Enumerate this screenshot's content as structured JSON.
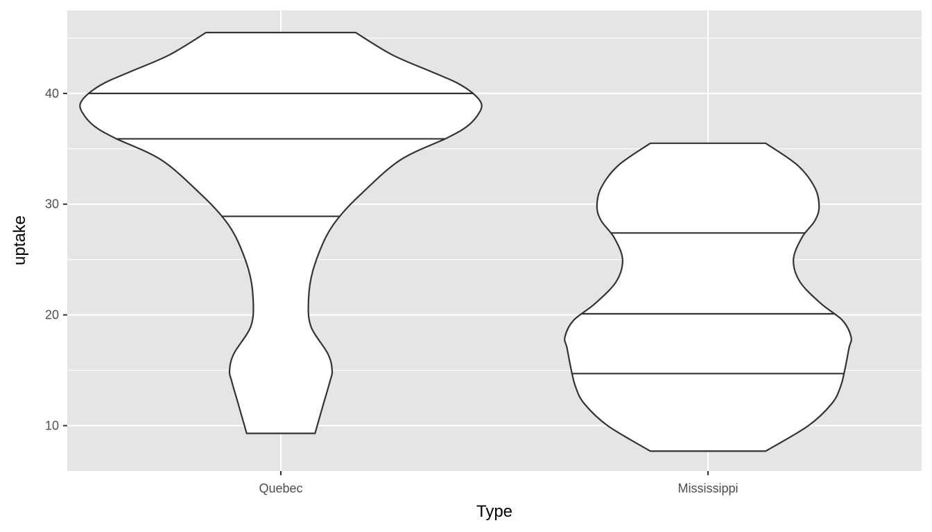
{
  "chart_data": {
    "type": "violin",
    "title": "",
    "xlabel": "Type",
    "ylabel": "uptake",
    "categories": [
      "Quebec",
      "Mississippi"
    ],
    "ylim": [
      5.9,
      47.5
    ],
    "yticks": [
      10,
      20,
      30,
      40
    ],
    "ytick_labels": [
      "10",
      "20",
      "30",
      "40"
    ],
    "grid": true,
    "legend": "none",
    "colors": {
      "panel": "#E5E5E5",
      "grid": "#FFFFFF",
      "fill": "#FFFFFF",
      "outline": "#333333",
      "text": "#4D4D4D"
    },
    "violins": [
      {
        "category": "Quebec",
        "min": 9.3,
        "max": 45.5,
        "quantiles": [
          28.9,
          35.9,
          40.0
        ],
        "profile": [
          [
            9.3,
            0.08
          ],
          [
            12,
            0.1
          ],
          [
            14,
            0.115
          ],
          [
            15,
            0.12
          ],
          [
            16.5,
            0.11
          ],
          [
            19,
            0.07
          ],
          [
            21.5,
            0.065
          ],
          [
            24,
            0.075
          ],
          [
            27,
            0.105
          ],
          [
            29,
            0.14
          ],
          [
            31,
            0.19
          ],
          [
            34,
            0.28
          ],
          [
            36,
            0.39
          ],
          [
            37,
            0.435
          ],
          [
            38,
            0.46
          ],
          [
            39,
            0.47
          ],
          [
            40,
            0.45
          ],
          [
            41,
            0.41
          ],
          [
            42,
            0.35
          ],
          [
            43.5,
            0.26
          ],
          [
            45.5,
            0.175
          ]
        ]
      },
      {
        "category": "Mississippi",
        "min": 7.7,
        "max": 35.5,
        "quantiles": [
          14.7,
          20.1,
          27.4
        ],
        "profile": [
          [
            7.7,
            0.135
          ],
          [
            10,
            0.235
          ],
          [
            12,
            0.29
          ],
          [
            13.5,
            0.31
          ],
          [
            15,
            0.32
          ],
          [
            17,
            0.33
          ],
          [
            18,
            0.335
          ],
          [
            19.5,
            0.315
          ],
          [
            21,
            0.265
          ],
          [
            23,
            0.215
          ],
          [
            25,
            0.2
          ],
          [
            27,
            0.22
          ],
          [
            28.5,
            0.25
          ],
          [
            29.8,
            0.26
          ],
          [
            31.5,
            0.25
          ],
          [
            33.5,
            0.21
          ],
          [
            35.5,
            0.135
          ]
        ]
      }
    ]
  }
}
